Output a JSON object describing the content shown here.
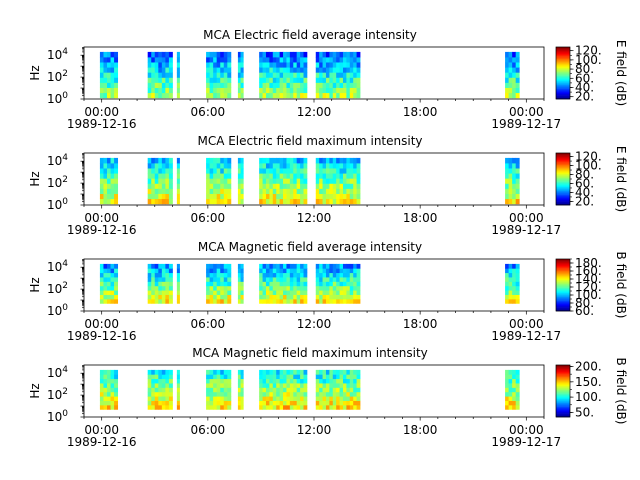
{
  "chart_data": [
    {
      "type": "heatmap",
      "title": "MCA  Electric field average intensity",
      "ylabel": "Hz",
      "y_scale": "log",
      "ylim": [
        1,
        56000
      ],
      "y_ticks": [
        {
          "base": "10",
          "exp": "0"
        },
        {
          "base": "10",
          "exp": "2"
        },
        {
          "base": "10",
          "exp": "4"
        }
      ],
      "xlim_hours": [
        -1,
        25
      ],
      "x_ticks": [
        "00:00",
        "06:00",
        "12:00",
        "18:00",
        "00:00"
      ],
      "x_dates": [
        "1989-12-16",
        "1989-12-17"
      ],
      "colorbar": {
        "label": "E field (dB)",
        "range": [
          15,
          128
        ],
        "ticks": [
          "20.",
          "40.",
          "60.",
          "80.",
          "100.",
          "120."
        ]
      },
      "coverage_hours": [
        [
          -0.1,
          0.9
        ],
        [
          2.6,
          4.0
        ],
        [
          4.25,
          4.4
        ],
        [
          5.9,
          7.3
        ],
        [
          7.7,
          8.0
        ],
        [
          8.9,
          11.6
        ],
        [
          12.1,
          14.6
        ],
        [
          22.8,
          23.6
        ]
      ],
      "freq_range_hz": [
        1.3,
        20000
      ],
      "level_db": {
        "low_freq": 75,
        "high_freq": 40
      }
    },
    {
      "type": "heatmap",
      "title": "MCA  Electric field maximum intensity",
      "ylabel": "Hz",
      "y_scale": "log",
      "ylim": [
        1,
        56000
      ],
      "y_ticks": [
        {
          "base": "10",
          "exp": "0"
        },
        {
          "base": "10",
          "exp": "2"
        },
        {
          "base": "10",
          "exp": "4"
        }
      ],
      "xlim_hours": [
        -1,
        25
      ],
      "x_ticks": [
        "00:00",
        "06:00",
        "12:00",
        "18:00",
        "00:00"
      ],
      "x_dates": [
        "1989-12-16",
        "1989-12-17"
      ],
      "colorbar": {
        "label": "E field (dB)",
        "range": [
          12,
          128
        ],
        "ticks": [
          "20.",
          "40.",
          "60.",
          "80.",
          "100.",
          "120."
        ]
      },
      "coverage_hours": [
        [
          -0.1,
          0.9
        ],
        [
          2.6,
          4.0
        ],
        [
          4.25,
          4.4
        ],
        [
          5.9,
          7.3
        ],
        [
          7.7,
          8.0
        ],
        [
          8.9,
          11.6
        ],
        [
          12.1,
          14.6
        ],
        [
          22.8,
          23.6
        ]
      ],
      "freq_range_hz": [
        1.3,
        20000
      ],
      "level_db": {
        "low_freq": 85,
        "high_freq": 50
      }
    },
    {
      "type": "heatmap",
      "title": "MCA  Magnetic field average intensity",
      "ylabel": "Hz",
      "y_scale": "log",
      "ylim": [
        1,
        56000
      ],
      "y_ticks": [
        {
          "base": "10",
          "exp": "0"
        },
        {
          "base": "10",
          "exp": "2"
        },
        {
          "base": "10",
          "exp": "4"
        }
      ],
      "xlim_hours": [
        -1,
        25
      ],
      "x_ticks": [
        "00:00",
        "06:00",
        "12:00",
        "18:00",
        "00:00"
      ],
      "x_dates": [
        "1989-12-16",
        "1989-12-17"
      ],
      "colorbar": {
        "label": "B field (dB)",
        "range": [
          60,
          190
        ],
        "ticks": [
          "60.",
          "80.",
          "100.",
          "120.",
          "140.",
          "160.",
          "180."
        ]
      },
      "coverage_hours": [
        [
          -0.1,
          0.9
        ],
        [
          2.6,
          4.0
        ],
        [
          4.25,
          4.4
        ],
        [
          5.9,
          7.3
        ],
        [
          7.7,
          8.0
        ],
        [
          8.9,
          11.6
        ],
        [
          12.1,
          14.6
        ],
        [
          22.8,
          23.6
        ]
      ],
      "freq_range_hz": [
        5,
        20000
      ],
      "level_db": {
        "low_freq": 140,
        "high_freq": 95
      }
    },
    {
      "type": "heatmap",
      "title": "MCA  Magnetic field maximum intensity",
      "ylabel": "Hz",
      "y_scale": "log",
      "ylim": [
        1,
        56000
      ],
      "y_ticks": [
        {
          "base": "10",
          "exp": "0"
        },
        {
          "base": "10",
          "exp": "2"
        },
        {
          "base": "10",
          "exp": "4"
        }
      ],
      "xlim_hours": [
        -1,
        25
      ],
      "x_ticks": [
        "00:00",
        "06:00",
        "12:00",
        "18:00",
        "00:00"
      ],
      "x_dates": [
        "1989-12-16",
        "1989-12-17"
      ],
      "colorbar": {
        "label": "B field (dB)",
        "range": [
          35,
          205
        ],
        "ticks": [
          "50.",
          "100.",
          "150.",
          "200."
        ]
      },
      "coverage_hours": [
        [
          -0.1,
          0.9
        ],
        [
          2.6,
          4.0
        ],
        [
          4.25,
          4.4
        ],
        [
          5.9,
          7.3
        ],
        [
          7.7,
          8.0
        ],
        [
          8.9,
          11.6
        ],
        [
          12.1,
          14.6
        ],
        [
          22.8,
          23.6
        ]
      ],
      "freq_range_hz": [
        5,
        20000
      ],
      "level_db": {
        "low_freq": 145,
        "high_freq": 100
      }
    }
  ]
}
